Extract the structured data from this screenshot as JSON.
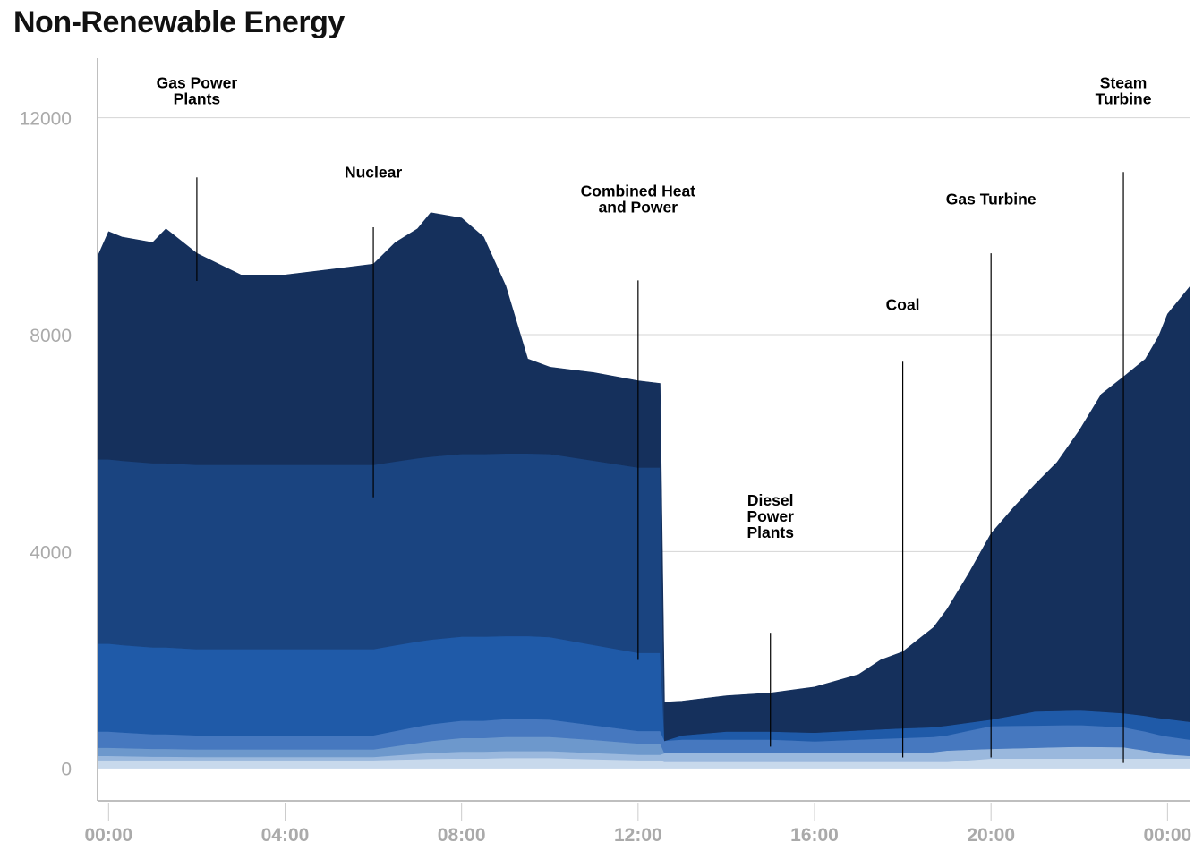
{
  "chart_data": {
    "type": "area",
    "stacked": true,
    "title": "Non-Renewable Energy",
    "xlabel": "",
    "ylabel": "",
    "ylim": [
      -600,
      13100
    ],
    "xlim_hours": [
      -0.25,
      24.5
    ],
    "yticks": [
      0,
      4000,
      8000,
      12000
    ],
    "ytick_labels": [
      "0",
      "4000",
      "8000",
      "12000"
    ],
    "xticks_hours": [
      0,
      4,
      8,
      12,
      16,
      20,
      24
    ],
    "xtick_labels": [
      "00:00",
      "04:00",
      "08:00",
      "12:00",
      "16:00",
      "20:00",
      "00:00"
    ],
    "grid": "horizontal",
    "x_hours": [
      -0.25,
      0,
      0.3,
      1,
      1.3,
      2,
      3,
      4,
      5,
      6,
      6.5,
      7,
      7.3,
      8,
      8.5,
      9,
      9.5,
      10,
      11,
      12,
      12.5,
      12.6,
      13,
      14,
      15,
      16,
      17,
      17.5,
      18,
      18.7,
      19,
      19.5,
      20,
      20.5,
      21,
      21.5,
      22,
      22.5,
      23,
      23.5,
      23.8,
      24,
      24.5
    ],
    "series": [
      {
        "color": "#c8d9ec",
        "values": [
          150,
          150,
          150,
          150,
          150,
          150,
          150,
          150,
          150,
          150,
          160,
          170,
          175,
          180,
          180,
          190,
          190,
          190,
          170,
          150,
          150,
          120,
          120,
          120,
          120,
          120,
          120,
          120,
          120,
          120,
          120,
          150,
          180,
          180,
          180,
          180,
          180,
          180,
          180,
          180,
          180,
          180,
          180
        ]
      },
      {
        "color": "#9ab8dd",
        "values": [
          80,
          80,
          75,
          65,
          65,
          60,
          60,
          60,
          60,
          60,
          80,
          100,
          110,
          130,
          130,
          130,
          130,
          130,
          115,
          100,
          100,
          160,
          160,
          160,
          160,
          160,
          160,
          160,
          160,
          180,
          210,
          195,
          180,
          190,
          200,
          210,
          220,
          215,
          210,
          150,
          100,
          80,
          50
        ]
      },
      {
        "color": "#6d98cc",
        "values": [
          150,
          150,
          150,
          145,
          145,
          140,
          140,
          140,
          140,
          140,
          170,
          200,
          220,
          250,
          250,
          260,
          260,
          260,
          240,
          210,
          210,
          0,
          0,
          0,
          0,
          0,
          0,
          0,
          0,
          0,
          0,
          0,
          0,
          0,
          0,
          0,
          0,
          0,
          0,
          0,
          0,
          0,
          0
        ]
      },
      {
        "color": "#4678bf",
        "values": [
          300,
          300,
          290,
          270,
          270,
          260,
          260,
          260,
          260,
          260,
          280,
          300,
          310,
          320,
          320,
          330,
          330,
          320,
          270,
          230,
          230,
          230,
          250,
          250,
          250,
          220,
          250,
          265,
          280,
          280,
          280,
          350,
          420,
          415,
          410,
          405,
          400,
          385,
          370,
          350,
          340,
          330,
          300
        ]
      },
      {
        "color": "#1f5aa8",
        "values": [
          1620,
          1620,
          1610,
          1600,
          1600,
          1590,
          1590,
          1590,
          1590,
          1590,
          1580,
          1570,
          1560,
          1550,
          1550,
          1530,
          1530,
          1520,
          1480,
          1440,
          1440,
          0,
          80,
          150,
          150,
          160,
          170,
          175,
          180,
          180,
          180,
          150,
          120,
          190,
          260,
          265,
          270,
          265,
          260,
          290,
          310,
          320,
          330
        ]
      },
      {
        "color": "#1a4480",
        "values": [
          3400,
          3400,
          3400,
          3400,
          3400,
          3400,
          3400,
          3400,
          3400,
          3400,
          3390,
          3380,
          3375,
          3370,
          3370,
          3370,
          3370,
          3380,
          3400,
          3420,
          3420,
          0,
          0,
          0,
          0,
          0,
          0,
          0,
          0,
          0,
          0,
          0,
          0,
          0,
          0,
          0,
          0,
          0,
          0,
          0,
          0,
          0,
          0
        ]
      },
      {
        "color": "#15305c",
        "values": [
          3740,
          4200,
          4125,
          4070,
          4320,
          3900,
          3500,
          3500,
          3600,
          3700,
          4040,
          4230,
          4500,
          4350,
          4000,
          3090,
          1740,
          1600,
          1625,
          1600,
          1550,
          710,
          630,
          660,
          710,
          840,
          1030,
          1280,
          1410,
          1840,
          2140,
          2755,
          3430,
          3825,
          4190,
          4590,
          5160,
          5855,
          6200,
          6580,
          7040,
          7470,
          8020
        ]
      }
    ],
    "annotations": [
      {
        "lines": [
          "Gas Power",
          "Plants"
        ],
        "x_hour": 2,
        "text_value": 12550,
        "line_from": 10900,
        "line_to": 8990
      },
      {
        "lines": [
          "Nuclear"
        ],
        "x_hour": 6,
        "text_value": 10900,
        "line_from": 9980,
        "line_to": 5000
      },
      {
        "lines": [
          "Combined Heat",
          "and Power"
        ],
        "x_hour": 12,
        "text_value": 10550,
        "line_from": 9000,
        "line_to": 2000
      },
      {
        "lines": [
          "Diesel",
          "Power",
          "Plants"
        ],
        "x_hour": 15,
        "text_value": 4850,
        "line_from": 2500,
        "line_to": 400
      },
      {
        "lines": [
          "Coal"
        ],
        "x_hour": 18,
        "text_value": 8450,
        "line_from": 7500,
        "line_to": 200
      },
      {
        "lines": [
          "Gas Turbine"
        ],
        "x_hour": 20,
        "text_value": 10400,
        "line_from": 9500,
        "line_to": 200
      },
      {
        "lines": [
          "Steam",
          "Turbine"
        ],
        "x_hour": 23,
        "text_value": 12550,
        "line_from": 11000,
        "line_to": 100
      }
    ]
  }
}
